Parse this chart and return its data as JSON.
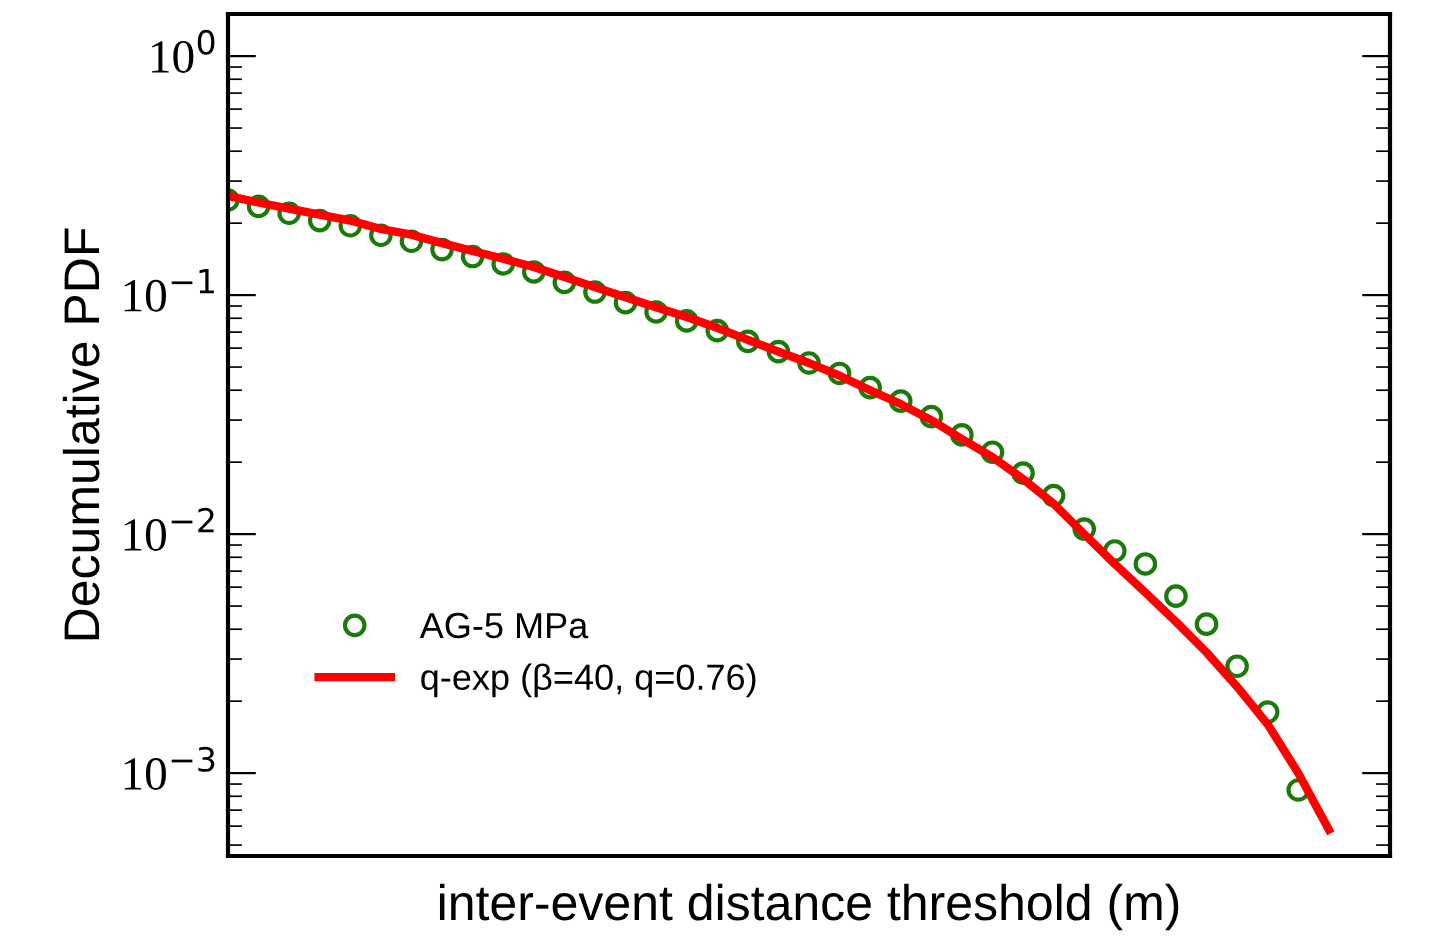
{
  "chart_data": {
    "type": "scatter",
    "xlabel": "inter-event distance threshold (m)",
    "ylabel": "Decumulative PDF",
    "categories": [
      null,
      null,
      null,
      null,
      null,
      null,
      null,
      null,
      null,
      null,
      null,
      null,
      null,
      null,
      null,
      null,
      null,
      null,
      null,
      null,
      null,
      null,
      null,
      null,
      null,
      null,
      null,
      null,
      null,
      null,
      null,
      null,
      null,
      null,
      null,
      null,
      null,
      null,
      null
    ],
    "series": [
      {
        "name": "AG-5 MPa",
        "color": "#1a7a0a",
        "marker": "circle",
        "values": [
          0.25,
          0.235,
          0.22,
          0.205,
          0.195,
          0.178,
          0.168,
          0.155,
          0.145,
          0.135,
          0.125,
          0.113,
          0.103,
          0.093,
          0.085,
          0.078,
          0.071,
          0.064,
          0.058,
          0.052,
          0.047,
          0.041,
          0.036,
          0.031,
          0.026,
          0.022,
          0.018,
          0.0145,
          0.0105,
          0.0085,
          0.0075,
          0.0055,
          0.0042,
          0.0028,
          0.0018,
          0.00085,
          null,
          null,
          null
        ]
      },
      {
        "name": "q-exp (β=40, q=0.76)",
        "type": "line",
        "color": "#ff0000",
        "line_style": "solid",
        "values": [
          0.26,
          0.244,
          0.23,
          0.217,
          0.205,
          0.189,
          0.179,
          0.165,
          0.153,
          0.142,
          0.131,
          0.119,
          0.108,
          0.098,
          0.089,
          0.081,
          0.073,
          0.065,
          0.058,
          0.052,
          0.046,
          0.04,
          0.035,
          0.03,
          0.025,
          0.021,
          0.017,
          0.0134,
          0.01,
          0.0075,
          0.0057,
          0.0043,
          0.0032,
          0.0023,
          0.0016,
          0.001,
          0.00058,
          null,
          null
        ]
      }
    ],
    "log": "y",
    "ylim": [
      0.00045,
      1.5
    ],
    "yticks": [
      {
        "value": 1,
        "label": "10$^{0}$"
      },
      {
        "value": 0.1,
        "label": "10$^{−1}$"
      },
      {
        "value": 0.01,
        "label": "10$^{−2}$"
      },
      {
        "value": 0.001,
        "label": "10$^{−3}$"
      }
    ],
    "tick_labels": "y",
    "grid": false,
    "legend": "bottom left"
  }
}
